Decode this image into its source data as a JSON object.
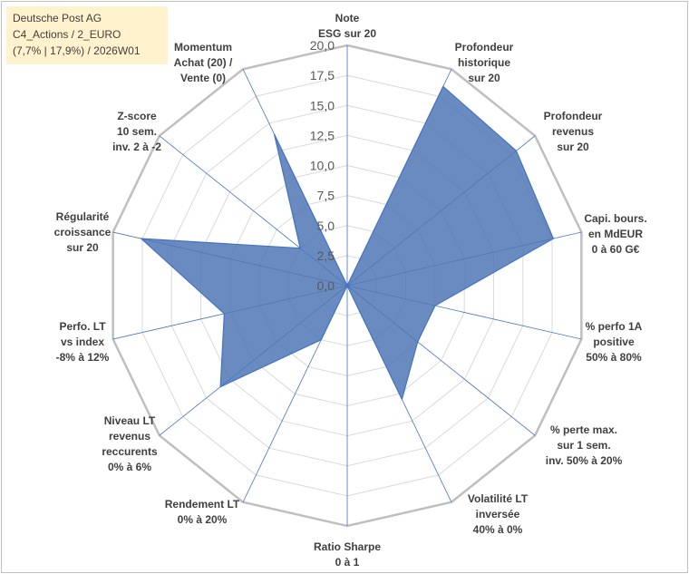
{
  "title": {
    "line1": "Deutsche Post AG",
    "line2": "C4_Actions / 2_EURO",
    "line3": "(7,7% | 17,9%) / 2026W01"
  },
  "colors": {
    "fill": "#4f77b5",
    "stroke": "#4472c4",
    "grid": "#d9d9d9",
    "outer": "#bfbfbf",
    "spoke": "#4472c4",
    "title_bg": "#fff2cc"
  },
  "chart_data": {
    "type": "radar",
    "scale_min": 0,
    "scale_max": 20,
    "ticks": [
      "0,0",
      "2,5",
      "5,0",
      "7,5",
      "10,0",
      "12,5",
      "15,0",
      "17,5",
      "20,0"
    ],
    "axes": [
      {
        "label": [
          "Note",
          "ESG sur 20"
        ],
        "value": 0
      },
      {
        "label": [
          "Profondeur",
          "historique",
          "sur 20"
        ],
        "value": 18.4
      },
      {
        "label": [
          "Profondeur",
          "revenus",
          "sur 20"
        ],
        "value": 18.0
      },
      {
        "label": [
          "Capi. bours.",
          "en MdEUR",
          "0 à 60 G€"
        ],
        "value": 17.6
      },
      {
        "label": [
          "% perfo 1A",
          "positive",
          "50% à 80%"
        ],
        "value": 7.5
      },
      {
        "label": [
          "% perte max.",
          "sur 1 sem.",
          "inv. 50% à 20%"
        ],
        "value": 7.5
      },
      {
        "label": [
          "Volatilité LT",
          "inversée",
          "40% à 0%"
        ],
        "value": 10.5
      },
      {
        "label": [
          "Ratio Sharpe",
          "0 à 1"
        ],
        "value": 0
      },
      {
        "label": [
          "Rendement LT",
          "0% à 20%"
        ],
        "value": 5.0
      },
      {
        "label": [
          "Niveau LT",
          "revenus",
          "reccurents",
          "0% à 6%"
        ],
        "value": 13.5
      },
      {
        "label": [
          "Perfo. LT",
          "vs index",
          "-8% à 12%"
        ],
        "value": 10.5
      },
      {
        "label": [
          "Régularité",
          "croissance",
          "sur 20"
        ],
        "value": 17.6
      },
      {
        "label": [
          "Z-score",
          "10 sem.",
          "inv. 2 à -2"
        ],
        "value": 5.0
      },
      {
        "label": [
          "Momentum",
          "Achat (20) /",
          "Vente (0)"
        ],
        "value": 14.0
      }
    ]
  }
}
